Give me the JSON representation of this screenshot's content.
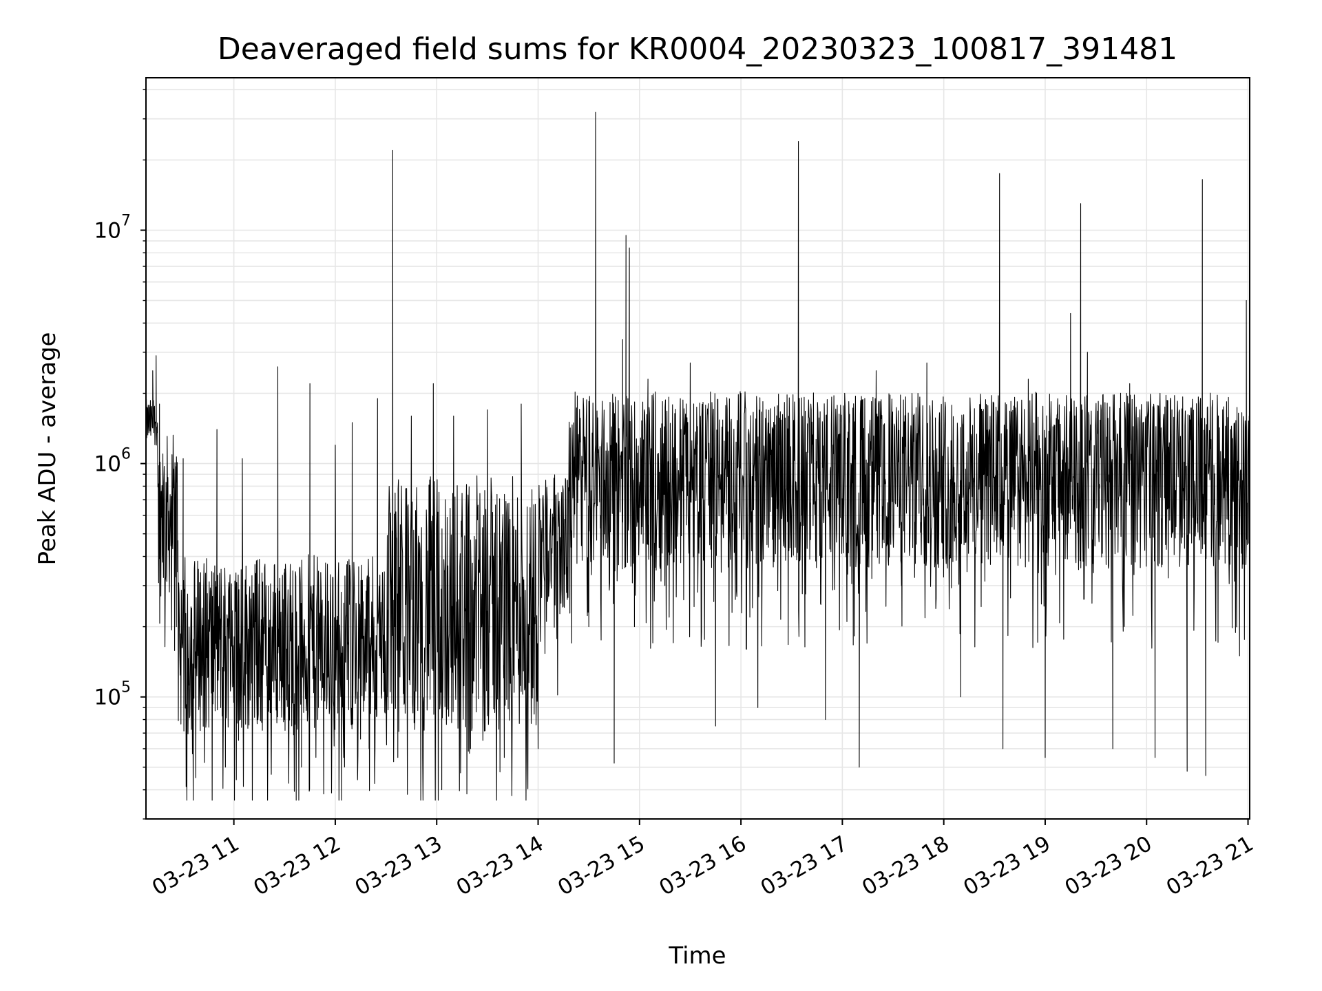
{
  "chart_data": {
    "type": "line",
    "title": "Deaveraged field sums for KR0004_20230323_100817_391481",
    "xlabel": "Time",
    "ylabel": "Peak ADU - average",
    "yscale": "log",
    "ylim": [
      30000,
      45000000
    ],
    "xlim": [
      "03-23 10:08",
      "03-23 21:01"
    ],
    "grid": true,
    "x_ticks": [
      "03-23 11",
      "03-23 12",
      "03-23 13",
      "03-23 14",
      "03-23 15",
      "03-23 16",
      "03-23 17",
      "03-23 18",
      "03-23 19",
      "03-23 20",
      "03-23 21"
    ],
    "y_ticks": [
      {
        "base": "10",
        "exp": "5",
        "value": 100000
      },
      {
        "base": "10",
        "exp": "6",
        "value": 1000000
      },
      {
        "base": "10",
        "exp": "7",
        "value": 10000000
      }
    ],
    "series": [
      {
        "color": "#000000",
        "note": "dense noisy trace; values below are representative envelope points (time, Peak ADU - average)",
        "points": [
          [
            "03-23 10:08",
            1500000
          ],
          [
            "03-23 10:10",
            1600000
          ],
          [
            "03-23 10:12",
            2500000
          ],
          [
            "03-23 10:14",
            2900000
          ],
          [
            "03-23 10:16",
            1800000
          ],
          [
            "03-23 10:18",
            1100000
          ],
          [
            "03-23 10:20",
            700000
          ],
          [
            "03-23 10:23",
            400000
          ],
          [
            "03-23 10:26",
            200000
          ],
          [
            "03-23 10:30",
            1050000
          ],
          [
            "03-23 10:33",
            90000
          ],
          [
            "03-23 10:40",
            150000
          ],
          [
            "03-23 10:50",
            1400000
          ],
          [
            "03-23 10:55",
            50000
          ],
          [
            "03-23 11:00",
            120000
          ],
          [
            "03-23 11:05",
            1050000
          ],
          [
            "03-23 11:15",
            100000
          ],
          [
            "03-23 11:26",
            2600000
          ],
          [
            "03-23 11:30",
            80000
          ],
          [
            "03-23 11:40",
            50000
          ],
          [
            "03-23 11:45",
            2200000
          ],
          [
            "03-23 11:50",
            90000
          ],
          [
            "03-23 12:00",
            1200000
          ],
          [
            "03-23 12:05",
            55000
          ],
          [
            "03-23 12:10",
            1500000
          ],
          [
            "03-23 12:20",
            60000
          ],
          [
            "03-23 12:25",
            1900000
          ],
          [
            "03-23 12:31",
            100000
          ],
          [
            "03-23 12:34",
            22000000
          ],
          [
            "03-23 12:37",
            55000
          ],
          [
            "03-23 12:45",
            1600000
          ],
          [
            "03-23 12:52",
            48000
          ],
          [
            "03-23 12:58",
            2200000
          ],
          [
            "03-23 13:03",
            40000
          ],
          [
            "03-23 13:10",
            1600000
          ],
          [
            "03-23 13:20",
            60000
          ],
          [
            "03-23 13:30",
            1700000
          ],
          [
            "03-23 13:40",
            55000
          ],
          [
            "03-23 13:50",
            1800000
          ],
          [
            "03-23 14:00",
            60000
          ],
          [
            "03-23 14:10",
            300000
          ],
          [
            "03-23 14:20",
            1200000
          ],
          [
            "03-23 14:30",
            200000
          ],
          [
            "03-23 14:34",
            32000000
          ],
          [
            "03-23 14:37",
            600000
          ],
          [
            "03-23 14:45",
            52000
          ],
          [
            "03-23 14:50",
            3400000
          ],
          [
            "03-23 14:52",
            9500000
          ],
          [
            "03-23 14:54",
            8400000
          ],
          [
            "03-23 14:57",
            200000
          ],
          [
            "03-23 15:05",
            2300000
          ],
          [
            "03-23 15:15",
            300000
          ],
          [
            "03-23 15:30",
            2700000
          ],
          [
            "03-23 15:45",
            75000
          ],
          [
            "03-23 16:00",
            2000000
          ],
          [
            "03-23 16:10",
            90000
          ],
          [
            "03-23 16:34",
            24000000
          ],
          [
            "03-23 16:36",
            600000
          ],
          [
            "03-23 16:50",
            80000
          ],
          [
            "03-23 17:10",
            50000
          ],
          [
            "03-23 17:20",
            2500000
          ],
          [
            "03-23 17:35",
            300000
          ],
          [
            "03-23 17:50",
            2700000
          ],
          [
            "03-23 18:10",
            100000
          ],
          [
            "03-23 18:33",
            17500000
          ],
          [
            "03-23 18:35",
            60000
          ],
          [
            "03-23 18:50",
            2300000
          ],
          [
            "03-23 19:00",
            55000
          ],
          [
            "03-23 19:15",
            4400000
          ],
          [
            "03-23 19:21",
            13000000
          ],
          [
            "03-23 19:25",
            3000000
          ],
          [
            "03-23 19:40",
            60000
          ],
          [
            "03-23 19:50",
            2200000
          ],
          [
            "03-23 20:05",
            55000
          ],
          [
            "03-23 20:15",
            1700000
          ],
          [
            "03-23 20:24",
            48000
          ],
          [
            "03-23 20:33",
            16500000
          ],
          [
            "03-23 20:35",
            46000
          ],
          [
            "03-23 20:45",
            1700000
          ],
          [
            "03-23 20:55",
            150000
          ],
          [
            "03-23 20:59",
            5000000
          ],
          [
            "03-23 21:01",
            2400000
          ]
        ]
      }
    ]
  }
}
